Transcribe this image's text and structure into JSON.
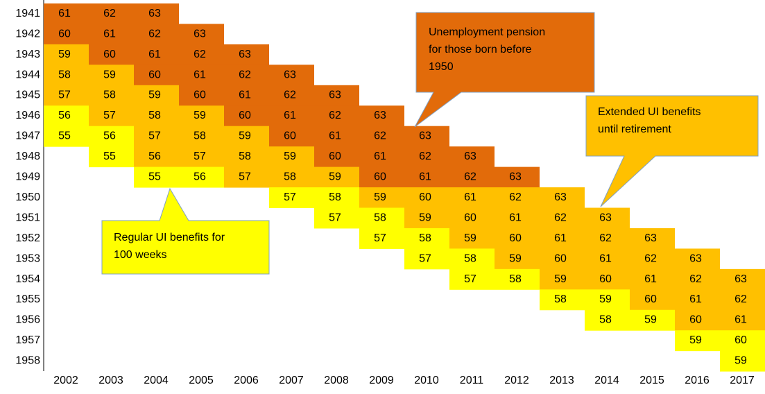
{
  "table": {
    "columns": [
      "2002",
      "2003",
      "2004",
      "2005",
      "2006",
      "2007",
      "2008",
      "2009",
      "2010",
      "2011",
      "2012",
      "2013",
      "2014",
      "2015",
      "2016",
      "2017"
    ],
    "rows": [
      {
        "label": "1941",
        "start": 0,
        "cells": [
          {
            "value": 61,
            "fill": "#E26B0A"
          },
          {
            "value": 62,
            "fill": "#E26B0A"
          },
          {
            "value": 63,
            "fill": "#E26B0A"
          }
        ]
      },
      {
        "label": "1942",
        "start": 0,
        "cells": [
          {
            "value": 60,
            "fill": "#E26B0A"
          },
          {
            "value": 61,
            "fill": "#E26B0A"
          },
          {
            "value": 62,
            "fill": "#E26B0A"
          },
          {
            "value": 63,
            "fill": "#E26B0A"
          }
        ]
      },
      {
        "label": "1943",
        "start": 0,
        "cells": [
          {
            "value": 59,
            "fill": "#FFC000"
          },
          {
            "value": 60,
            "fill": "#E26B0A"
          },
          {
            "value": 61,
            "fill": "#E26B0A"
          },
          {
            "value": 62,
            "fill": "#E26B0A"
          },
          {
            "value": 63,
            "fill": "#E26B0A"
          }
        ]
      },
      {
        "label": "1944",
        "start": 0,
        "cells": [
          {
            "value": 58,
            "fill": "#FFC000"
          },
          {
            "value": 59,
            "fill": "#FFC000"
          },
          {
            "value": 60,
            "fill": "#E26B0A"
          },
          {
            "value": 61,
            "fill": "#E26B0A"
          },
          {
            "value": 62,
            "fill": "#E26B0A"
          },
          {
            "value": 63,
            "fill": "#E26B0A"
          }
        ]
      },
      {
        "label": "1945",
        "start": 0,
        "cells": [
          {
            "value": 57,
            "fill": "#FFC000"
          },
          {
            "value": 58,
            "fill": "#FFC000"
          },
          {
            "value": 59,
            "fill": "#FFC000"
          },
          {
            "value": 60,
            "fill": "#E26B0A"
          },
          {
            "value": 61,
            "fill": "#E26B0A"
          },
          {
            "value": 62,
            "fill": "#E26B0A"
          },
          {
            "value": 63,
            "fill": "#E26B0A"
          }
        ]
      },
      {
        "label": "1946",
        "start": 0,
        "cells": [
          {
            "value": 56,
            "fill": "#FFFF00"
          },
          {
            "value": 57,
            "fill": "#FFC000"
          },
          {
            "value": 58,
            "fill": "#FFC000"
          },
          {
            "value": 59,
            "fill": "#FFC000"
          },
          {
            "value": 60,
            "fill": "#E26B0A"
          },
          {
            "value": 61,
            "fill": "#E26B0A"
          },
          {
            "value": 62,
            "fill": "#E26B0A"
          },
          {
            "value": 63,
            "fill": "#E26B0A"
          }
        ]
      },
      {
        "label": "1947",
        "start": 0,
        "cells": [
          {
            "value": 55,
            "fill": "#FFFF00"
          },
          {
            "value": 56,
            "fill": "#FFFF00"
          },
          {
            "value": 57,
            "fill": "#FFC000"
          },
          {
            "value": 58,
            "fill": "#FFC000"
          },
          {
            "value": 59,
            "fill": "#FFC000"
          },
          {
            "value": 60,
            "fill": "#E26B0A"
          },
          {
            "value": 61,
            "fill": "#E26B0A"
          },
          {
            "value": 62,
            "fill": "#E26B0A"
          },
          {
            "value": 63,
            "fill": "#E26B0A"
          }
        ]
      },
      {
        "label": "1948",
        "start": 1,
        "cells": [
          {
            "value": 55,
            "fill": "#FFFF00"
          },
          {
            "value": 56,
            "fill": "#FFC000"
          },
          {
            "value": 57,
            "fill": "#FFC000"
          },
          {
            "value": 58,
            "fill": "#FFC000"
          },
          {
            "value": 59,
            "fill": "#FFC000"
          },
          {
            "value": 60,
            "fill": "#E26B0A"
          },
          {
            "value": 61,
            "fill": "#E26B0A"
          },
          {
            "value": 62,
            "fill": "#E26B0A"
          },
          {
            "value": 63,
            "fill": "#E26B0A"
          }
        ]
      },
      {
        "label": "1949",
        "start": 2,
        "cells": [
          {
            "value": 55,
            "fill": "#FFFF00"
          },
          {
            "value": 56,
            "fill": "#FFFF00"
          },
          {
            "value": 57,
            "fill": "#FFC000"
          },
          {
            "value": 58,
            "fill": "#FFC000"
          },
          {
            "value": 59,
            "fill": "#FFC000"
          },
          {
            "value": 60,
            "fill": "#E26B0A"
          },
          {
            "value": 61,
            "fill": "#E26B0A"
          },
          {
            "value": 62,
            "fill": "#E26B0A"
          },
          {
            "value": 63,
            "fill": "#E26B0A"
          }
        ]
      },
      {
        "label": "1950",
        "start": 5,
        "cells": [
          {
            "value": 57,
            "fill": "#FFFF00"
          },
          {
            "value": 58,
            "fill": "#FFFF00"
          },
          {
            "value": 59,
            "fill": "#FFC000"
          },
          {
            "value": 60,
            "fill": "#FFC000"
          },
          {
            "value": 61,
            "fill": "#FFC000"
          },
          {
            "value": 62,
            "fill": "#FFC000"
          },
          {
            "value": 63,
            "fill": "#FFC000"
          }
        ]
      },
      {
        "label": "1951",
        "start": 6,
        "cells": [
          {
            "value": 57,
            "fill": "#FFFF00"
          },
          {
            "value": 58,
            "fill": "#FFFF00"
          },
          {
            "value": 59,
            "fill": "#FFC000"
          },
          {
            "value": 60,
            "fill": "#FFC000"
          },
          {
            "value": 61,
            "fill": "#FFC000"
          },
          {
            "value": 62,
            "fill": "#FFC000"
          },
          {
            "value": 63,
            "fill": "#FFC000"
          }
        ]
      },
      {
        "label": "1952",
        "start": 7,
        "cells": [
          {
            "value": 57,
            "fill": "#FFFF00"
          },
          {
            "value": 58,
            "fill": "#FFFF00"
          },
          {
            "value": 59,
            "fill": "#FFC000"
          },
          {
            "value": 60,
            "fill": "#FFC000"
          },
          {
            "value": 61,
            "fill": "#FFC000"
          },
          {
            "value": 62,
            "fill": "#FFC000"
          },
          {
            "value": 63,
            "fill": "#FFC000"
          }
        ]
      },
      {
        "label": "1953",
        "start": 8,
        "cells": [
          {
            "value": 57,
            "fill": "#FFFF00"
          },
          {
            "value": 58,
            "fill": "#FFFF00"
          },
          {
            "value": 59,
            "fill": "#FFC000"
          },
          {
            "value": 60,
            "fill": "#FFC000"
          },
          {
            "value": 61,
            "fill": "#FFC000"
          },
          {
            "value": 62,
            "fill": "#FFC000"
          },
          {
            "value": 63,
            "fill": "#FFC000"
          }
        ]
      },
      {
        "label": "1954",
        "start": 9,
        "cells": [
          {
            "value": 57,
            "fill": "#FFFF00"
          },
          {
            "value": 58,
            "fill": "#FFFF00"
          },
          {
            "value": 59,
            "fill": "#FFC000"
          },
          {
            "value": 60,
            "fill": "#FFC000"
          },
          {
            "value": 61,
            "fill": "#FFC000"
          },
          {
            "value": 62,
            "fill": "#FFC000"
          },
          {
            "value": 63,
            "fill": "#FFC000"
          }
        ]
      },
      {
        "label": "1955",
        "start": 11,
        "cells": [
          {
            "value": 58,
            "fill": "#FFFF00"
          },
          {
            "value": 59,
            "fill": "#FFFF00"
          },
          {
            "value": 60,
            "fill": "#FFC000"
          },
          {
            "value": 61,
            "fill": "#FFC000"
          },
          {
            "value": 62,
            "fill": "#FFC000"
          }
        ]
      },
      {
        "label": "1956",
        "start": 12,
        "cells": [
          {
            "value": 58,
            "fill": "#FFFF00"
          },
          {
            "value": 59,
            "fill": "#FFFF00"
          },
          {
            "value": 60,
            "fill": "#FFC000"
          },
          {
            "value": 61,
            "fill": "#FFC000"
          }
        ]
      },
      {
        "label": "1957",
        "start": 14,
        "cells": [
          {
            "value": 59,
            "fill": "#FFFF00"
          },
          {
            "value": 60,
            "fill": "#FFFF00"
          }
        ]
      },
      {
        "label": "1958",
        "start": 15,
        "cells": [
          {
            "value": 59,
            "fill": "#FFFF00"
          }
        ]
      }
    ]
  },
  "callouts": [
    {
      "lines": [
        "Unemployment pension",
        "for those born before",
        "1950"
      ],
      "fill": "#E26B0A"
    },
    {
      "lines": [
        "Extended UI benefits",
        "until retirement"
      ],
      "fill": "#FFC000"
    },
    {
      "lines": [
        "Regular UI benefits for",
        "100 weeks"
      ],
      "fill": "#FFFF00"
    }
  ]
}
